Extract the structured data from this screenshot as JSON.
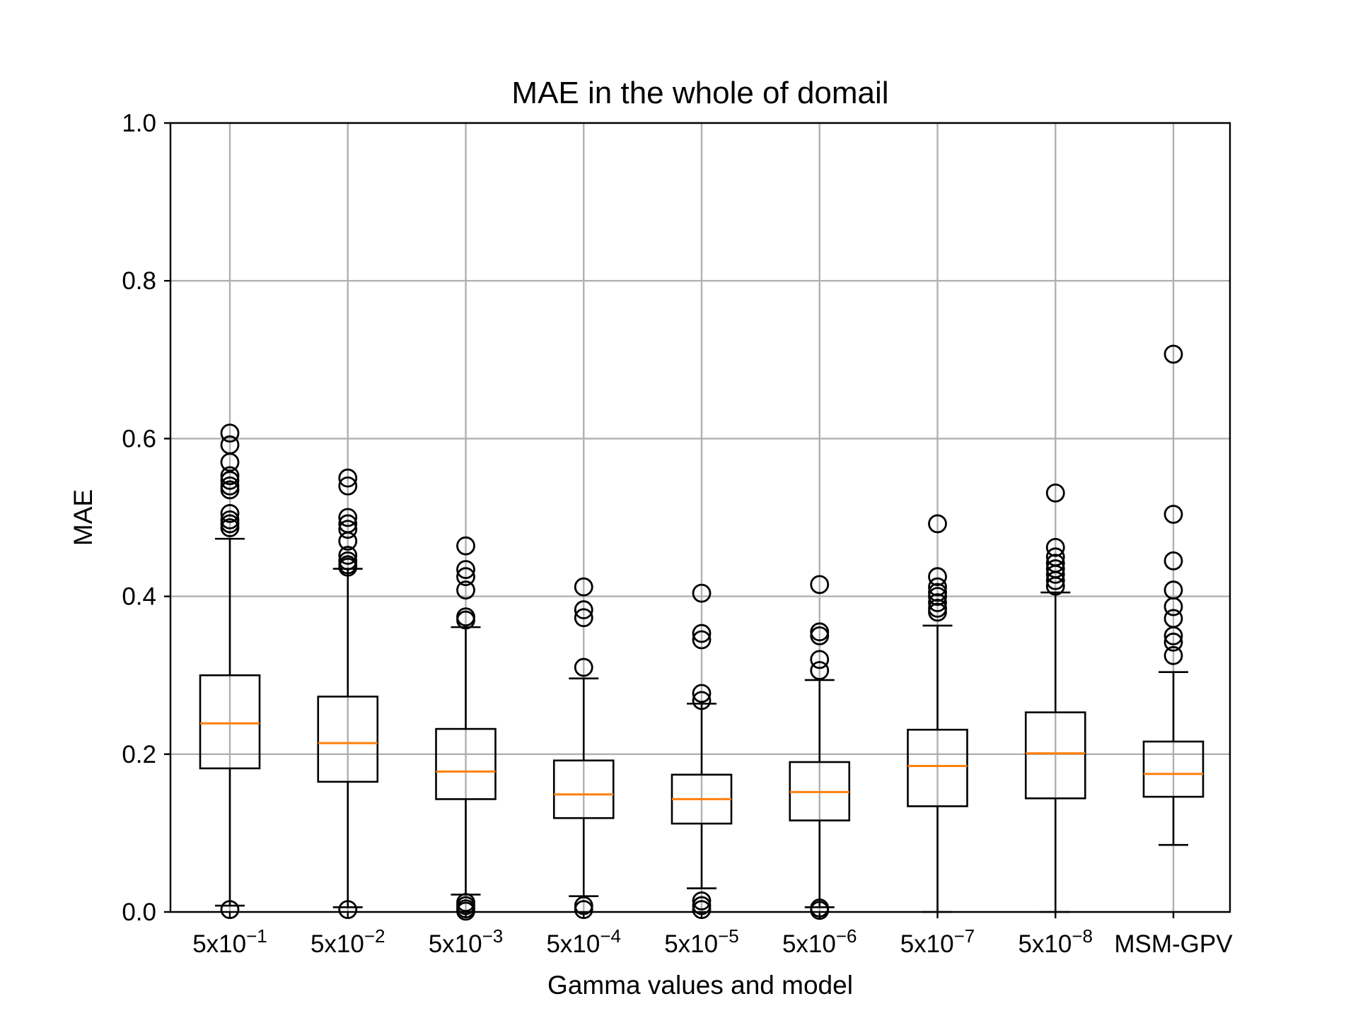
{
  "chart_data": {
    "type": "box",
    "title": "MAE in the whole of domail",
    "xlabel": "Gamma values and model",
    "ylabel": "MAE",
    "ylim": [
      0.0,
      1.0
    ],
    "yticks": [
      "0.0",
      "0.2",
      "0.4",
      "0.6",
      "0.8",
      "1.0"
    ],
    "grid": true,
    "colors": {
      "box": "#000000",
      "median": "#ff7f0e",
      "grid": "#b0b0b0"
    },
    "categories": [
      {
        "base": "5x10",
        "exp": "−1"
      },
      {
        "base": "5x10",
        "exp": "−2"
      },
      {
        "base": "5x10",
        "exp": "−3"
      },
      {
        "base": "5x10",
        "exp": "−4"
      },
      {
        "base": "5x10",
        "exp": "−5"
      },
      {
        "base": "5x10",
        "exp": "−6"
      },
      {
        "base": "5x10",
        "exp": "−7"
      },
      {
        "base": "5x10",
        "exp": "−8"
      },
      {
        "base": "MSM-GPV",
        "exp": ""
      }
    ],
    "boxes": [
      {
        "whislo": 0.008,
        "q1": 0.182,
        "med": 0.239,
        "q3": 0.3,
        "whishi": 0.473,
        "fliers": [
          0.607,
          0.592,
          0.57,
          0.553,
          0.547,
          0.54,
          0.535,
          0.505,
          0.497,
          0.492,
          0.487,
          0.003
        ]
      },
      {
        "whislo": 0.006,
        "q1": 0.165,
        "med": 0.214,
        "q3": 0.273,
        "whishi": 0.435,
        "fliers": [
          0.55,
          0.54,
          0.5,
          0.492,
          0.485,
          0.47,
          0.452,
          0.445,
          0.44,
          0.437,
          0.003
        ]
      },
      {
        "whislo": 0.022,
        "q1": 0.143,
        "med": 0.178,
        "q3": 0.232,
        "whishi": 0.361,
        "fliers": [
          0.464,
          0.434,
          0.425,
          0.408,
          0.374,
          0.37,
          0.012,
          0.008,
          0.004,
          0.001
        ]
      },
      {
        "whislo": 0.02,
        "q1": 0.119,
        "med": 0.149,
        "q3": 0.192,
        "whishi": 0.296,
        "fliers": [
          0.412,
          0.383,
          0.373,
          0.31,
          0.008,
          0.003
        ]
      },
      {
        "whislo": 0.03,
        "q1": 0.112,
        "med": 0.143,
        "q3": 0.174,
        "whishi": 0.264,
        "fliers": [
          0.404,
          0.353,
          0.345,
          0.277,
          0.268,
          0.014,
          0.008,
          0.003
        ]
      },
      {
        "whislo": 0.006,
        "q1": 0.116,
        "med": 0.152,
        "q3": 0.19,
        "whishi": 0.294,
        "fliers": [
          0.415,
          0.355,
          0.35,
          0.32,
          0.306,
          0.005,
          0.002
        ]
      },
      {
        "whislo": 0.0,
        "q1": 0.134,
        "med": 0.185,
        "q3": 0.231,
        "whishi": 0.363,
        "fliers": [
          0.492,
          0.425,
          0.412,
          0.405,
          0.4,
          0.392,
          0.385,
          0.38
        ]
      },
      {
        "whislo": 0.0,
        "q1": 0.144,
        "med": 0.201,
        "q3": 0.253,
        "whishi": 0.405,
        "fliers": [
          0.531,
          0.462,
          0.45,
          0.442,
          0.435,
          0.428,
          0.42,
          0.413
        ]
      },
      {
        "whislo": 0.085,
        "q1": 0.146,
        "med": 0.175,
        "q3": 0.216,
        "whishi": 0.304,
        "fliers": [
          0.707,
          0.504,
          0.445,
          0.408,
          0.387,
          0.372,
          0.35,
          0.342,
          0.325
        ]
      }
    ]
  }
}
